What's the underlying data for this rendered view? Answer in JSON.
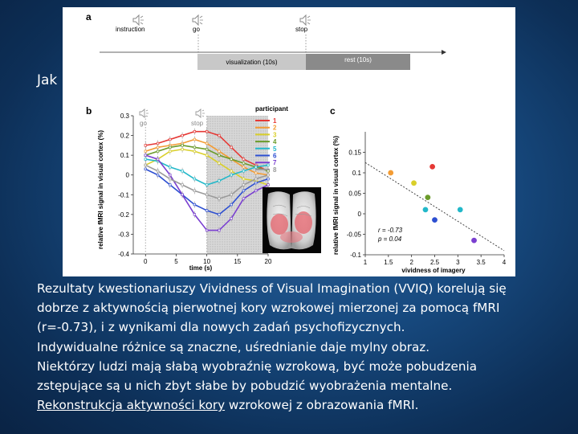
{
  "slide": {
    "title": "Jak"
  },
  "panel_a": {
    "label": "a",
    "events": [
      {
        "label": "instruction",
        "icon": "speaker-icon"
      },
      {
        "label": "go",
        "icon": "speaker-icon"
      },
      {
        "label": "stop",
        "icon": "speaker-icon"
      }
    ],
    "visualization_label": "visualization (10s)",
    "rest_label": "rest (10s)"
  },
  "panel_b": {
    "label": "b",
    "go_label": "go",
    "stop_label": "stop",
    "legend_title": "participant"
  },
  "panel_c": {
    "label": "c",
    "r_text": "r = -0.73",
    "p_text": "p = 0.04"
  },
  "chart_data": [
    {
      "type": "line",
      "panel": "b",
      "xlabel": "time (s)",
      "ylabel": "relative fMRI signal in visual cortex (%)",
      "xlim": [
        -2,
        20
      ],
      "ylim": [
        -0.4,
        0.3
      ],
      "xticks": [
        0,
        5,
        10,
        15,
        20
      ],
      "yticks": [
        0.3,
        0.2,
        0.1,
        0,
        -0.1,
        -0.2,
        -0.3,
        -0.4
      ],
      "x": [
        0,
        2,
        4,
        6,
        8,
        10,
        12,
        14,
        16,
        18,
        20
      ],
      "series": [
        {
          "name": "1",
          "color": "#e53935",
          "values": [
            0.15,
            0.16,
            0.18,
            0.2,
            0.22,
            0.22,
            0.2,
            0.14,
            0.08,
            0.05,
            0.02
          ]
        },
        {
          "name": "2",
          "color": "#f39c34",
          "values": [
            0.12,
            0.14,
            0.15,
            0.16,
            0.18,
            0.16,
            0.12,
            0.08,
            0.04,
            0.01,
            0.0
          ]
        },
        {
          "name": "3",
          "color": "#d9cf2a",
          "values": [
            0.05,
            0.08,
            0.12,
            0.13,
            0.12,
            0.1,
            0.06,
            0.02,
            -0.02,
            -0.03,
            -0.05
          ]
        },
        {
          "name": "4",
          "color": "#6b9b2a",
          "values": [
            0.1,
            0.12,
            0.14,
            0.15,
            0.14,
            0.13,
            0.1,
            0.08,
            0.06,
            0.04,
            0.02
          ]
        },
        {
          "name": "5",
          "color": "#22b8c9",
          "values": [
            0.08,
            0.07,
            0.04,
            0.02,
            -0.02,
            -0.05,
            -0.03,
            0.0,
            0.02,
            0.04,
            0.05
          ]
        },
        {
          "name": "6",
          "color": "#2d4fd1",
          "values": [
            0.03,
            0.0,
            -0.05,
            -0.1,
            -0.15,
            -0.18,
            -0.2,
            -0.15,
            -0.08,
            -0.04,
            -0.02
          ]
        },
        {
          "name": "7",
          "color": "#7a3fd0",
          "values": [
            0.1,
            0.08,
            0.0,
            -0.1,
            -0.2,
            -0.28,
            -0.28,
            -0.22,
            -0.12,
            -0.08,
            -0.05
          ]
        },
        {
          "name": "8",
          "color": "#9a9a9a",
          "values": [
            0.05,
            0.02,
            -0.02,
            -0.05,
            -0.08,
            -0.1,
            -0.12,
            -0.1,
            -0.05,
            -0.02,
            0.0
          ]
        }
      ]
    },
    {
      "type": "scatter",
      "panel": "c",
      "xlabel": "vividness of imagery",
      "ylabel": "relative fMRI signal in visual cortex (%)",
      "xlim": [
        1,
        4
      ],
      "ylim": [
        -0.1,
        0.2
      ],
      "xticks": [
        1,
        1.5,
        2,
        2.5,
        3,
        3.5,
        4
      ],
      "yticks": [
        0.15,
        0.1,
        0.05,
        0,
        -0.05,
        -0.1
      ],
      "points": [
        {
          "x": 1.55,
          "y": 0.1,
          "color": "#f39c34"
        },
        {
          "x": 2.05,
          "y": 0.075,
          "color": "#d9cf2a"
        },
        {
          "x": 2.45,
          "y": 0.115,
          "color": "#e53935"
        },
        {
          "x": 2.35,
          "y": 0.04,
          "color": "#6b9b2a"
        },
        {
          "x": 2.3,
          "y": 0.01,
          "color": "#22b8c9"
        },
        {
          "x": 2.5,
          "y": -0.015,
          "color": "#2d4fd1"
        },
        {
          "x": 3.05,
          "y": 0.01,
          "color": "#22b8c9"
        },
        {
          "x": 3.35,
          "y": -0.065,
          "color": "#7a3fd0"
        }
      ],
      "regression_line": {
        "x": [
          1,
          4
        ],
        "y": [
          0.125,
          -0.09
        ]
      }
    }
  ],
  "caption": {
    "line1": "Rezultaty kwestionariuszy Vividness of Visual Imagination (VVIQ) korelują się",
    "line2": "dobrze z aktywnością pierwotnej kory wzrokowej mierzonej za pomocą fMRI",
    "line3": "(r=-0.73), i z wynikami dla nowych zadań psychofizycznych.",
    "line4": "Indywidualne różnice są znaczne, uśrednianie daje mylny obraz.",
    "line5": "Niektórzy ludzi mają słabą wyobraźnię wzrokową, być może pobudzenia",
    "line6": "zstępujące są u nich zbyt słabe by pobudzić wyobrażenia mentalne.",
    "link_text": "Rekonstrukcja aktywności kory",
    "line7_rest": " wzrokowej z obrazowania fMRI."
  }
}
